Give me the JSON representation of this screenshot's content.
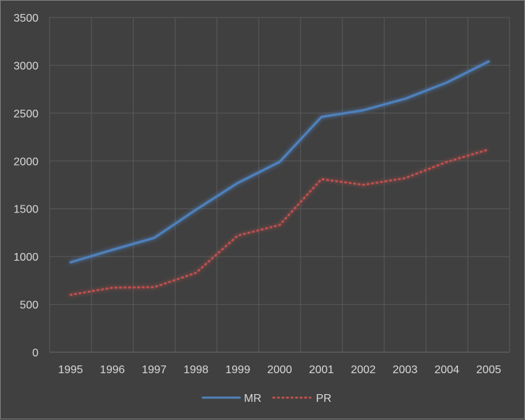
{
  "chart_data": {
    "type": "line",
    "title": "",
    "xlabel": "",
    "ylabel": "",
    "x": [
      "1995",
      "1996",
      "1997",
      "1998",
      "1999",
      "2000",
      "2001",
      "2002",
      "2003",
      "2004",
      "2005"
    ],
    "ylim": [
      0,
      3500
    ],
    "yticks": [
      0,
      500,
      1000,
      1500,
      2000,
      2500,
      3000,
      3500
    ],
    "grid": true,
    "legend_position": "bottom",
    "series": [
      {
        "name": "MR",
        "color": "#4f81bd",
        "style": "solid",
        "values": [
          940,
          1070,
          1195,
          1490,
          1770,
          1990,
          2460,
          2530,
          2650,
          2820,
          3040
        ]
      },
      {
        "name": "PR",
        "color": "#c0504d",
        "style": "dotted",
        "values": [
          600,
          675,
          680,
          830,
          1220,
          1330,
          1810,
          1750,
          1820,
          1990,
          2120
        ]
      }
    ]
  }
}
